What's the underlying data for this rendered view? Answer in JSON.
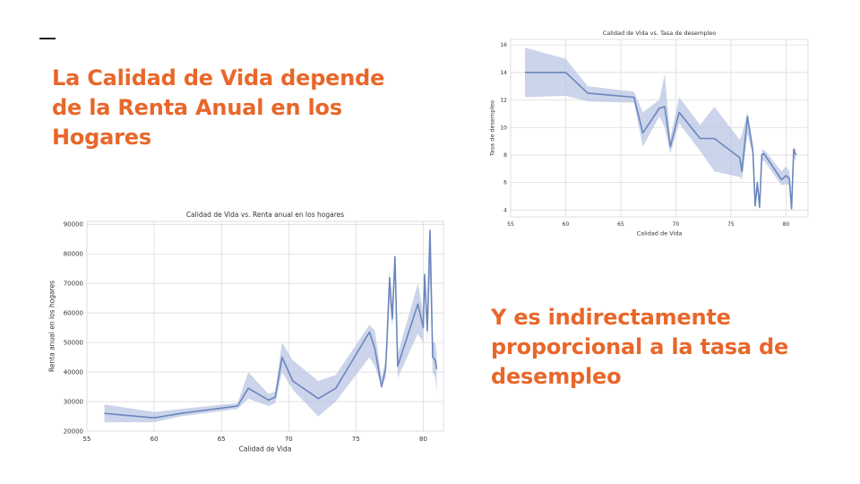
{
  "slide": {
    "dash": "_",
    "heading_left": "La Calidad de Vida depende de la Renta Anual en los Hogares",
    "heading_right": "Y es indirectamente proporcional a la tasa de desempleo"
  },
  "chart_data": [
    {
      "type": "line",
      "title": "Calidad de Vida vs. Renta anual en los hogares",
      "xlabel": "Calidad de Vida",
      "ylabel": "Renta anual en los hogares",
      "xlim": [
        55,
        81.5
      ],
      "ylim": [
        20000,
        91000
      ],
      "xticks": [
        55,
        60,
        65,
        70,
        75,
        80
      ],
      "yticks": [
        20000,
        30000,
        40000,
        50000,
        60000,
        70000,
        80000,
        90000
      ],
      "grid": true,
      "line_color": "#6b86bd",
      "band_color": "#b9c6e3",
      "series": [
        {
          "x": [
            56.3,
            60,
            62,
            66.2,
            67,
            68.5,
            69,
            69.5,
            70.3,
            72.2,
            73.5,
            76,
            76.4,
            76.9,
            77.2,
            77.3,
            77.5,
            77.7,
            77.9,
            78.1,
            79.6,
            80,
            80.1,
            80.3,
            80.5,
            80.7,
            80.9,
            81
          ],
          "y": [
            26000,
            24500,
            26000,
            28500,
            34500,
            30500,
            31500,
            45000,
            37000,
            31000,
            34500,
            53500,
            48000,
            35000,
            41000,
            50000,
            72000,
            58000,
            79000,
            42000,
            63000,
            55000,
            73000,
            54000,
            88000,
            45000,
            44000,
            41000
          ],
          "ci_low": [
            23000,
            23000,
            25000,
            27500,
            31000,
            28500,
            29500,
            40000,
            34000,
            25000,
            30000,
            45000,
            42000,
            35000,
            38000,
            45000,
            65000,
            55000,
            72000,
            38000,
            53000,
            50000,
            68000,
            50000,
            72000,
            40000,
            38000,
            33000
          ],
          "ci_high": [
            29000,
            26500,
            27500,
            29500,
            40000,
            32500,
            33500,
            50000,
            44000,
            37000,
            39000,
            56000,
            54000,
            38000,
            44000,
            55000,
            74000,
            62000,
            80000,
            46000,
            70000,
            60000,
            75000,
            58000,
            89000,
            50000,
            50000,
            46000
          ]
        }
      ]
    },
    {
      "type": "line",
      "title": "Calidad de Vida vs. Tasa de desempleo",
      "xlabel": "Calidad de Vida",
      "ylabel": "Tasa de desempleo",
      "xlim": [
        55,
        82
      ],
      "ylim": [
        3.5,
        16.4
      ],
      "xticks": [
        55,
        60,
        65,
        70,
        75,
        80
      ],
      "yticks": [
        4,
        6,
        8,
        10,
        12,
        14,
        16
      ],
      "grid": true,
      "line_color": "#6b86bd",
      "band_color": "#b9c6e3",
      "series": [
        {
          "x": [
            56.3,
            60,
            62,
            66.2,
            67,
            68.5,
            69,
            69.5,
            70.3,
            72.2,
            73.5,
            75.8,
            76,
            76.5,
            77,
            77.2,
            77.4,
            77.6,
            77.8,
            78,
            79.6,
            80,
            80.3,
            80.5,
            80.7,
            80.9
          ],
          "y": [
            14,
            14,
            12.5,
            12.2,
            9.6,
            11.4,
            11.5,
            8.6,
            11.1,
            9.2,
            9.2,
            7.8,
            6.8,
            10.8,
            8.2,
            4.3,
            6,
            4.2,
            8,
            8.1,
            6.2,
            6.5,
            6.3,
            4.1,
            8.4,
            8
          ],
          "ci_low": [
            12.2,
            12.3,
            11.9,
            11.8,
            8.6,
            10.8,
            10,
            8.1,
            10.3,
            8.3,
            6.8,
            6.4,
            6.2,
            9.5,
            8,
            4.1,
            5.6,
            4,
            7.5,
            7.6,
            5.8,
            5.9,
            5.8,
            4,
            7.8,
            7.6
          ],
          "ci_high": [
            15.8,
            15,
            13,
            12.6,
            11.1,
            12,
            13.9,
            9.2,
            12.2,
            10.2,
            11.5,
            9.1,
            9.5,
            11.1,
            8.8,
            4.6,
            6.2,
            4.5,
            8.3,
            8.4,
            6.8,
            7.2,
            6.8,
            4.5,
            8.6,
            8.4
          ]
        }
      ]
    }
  ]
}
